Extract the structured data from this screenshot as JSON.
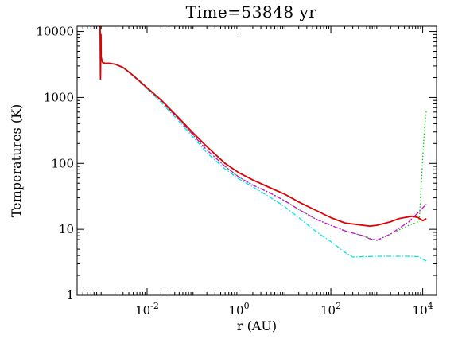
{
  "chart_data": {
    "type": "line",
    "title": "Time=53848 yr",
    "xlabel": "r (AU)",
    "ylabel": "Temperatures (K)",
    "xscale": "log",
    "yscale": "log",
    "xlim": [
      0.0003,
      20000
    ],
    "ylim": [
      1,
      12000
    ],
    "legend": "none",
    "grid": false,
    "x_major_ticks": [
      {
        "value": 0.01,
        "base": "10",
        "exp": "-2"
      },
      {
        "value": 1,
        "base": "10",
        "exp": "0"
      },
      {
        "value": 100,
        "base": "10",
        "exp": "2"
      },
      {
        "value": 10000,
        "base": "10",
        "exp": "4"
      }
    ],
    "y_major_ticks": [
      {
        "value": 1,
        "label": "1"
      },
      {
        "value": 10,
        "label": "10"
      },
      {
        "value": 100,
        "label": "100"
      },
      {
        "value": 1000,
        "label": "1000"
      },
      {
        "value": 10000,
        "label": "10000"
      }
    ],
    "series": [
      {
        "color": "#00e5e5",
        "style": "dashdot",
        "x": [
          0.00095,
          0.001,
          0.00103,
          0.00108,
          0.0012,
          0.0015,
          0.002,
          0.003,
          0.005,
          0.01,
          0.02,
          0.05,
          0.1,
          0.2,
          0.5,
          1,
          2,
          5,
          10,
          20,
          50,
          100,
          200,
          300,
          500,
          1000,
          2000,
          5000,
          8000,
          12000
        ],
        "y": [
          5000,
          4000,
          3700,
          3400,
          3300,
          3300,
          3200,
          2800,
          2100,
          1350,
          850,
          430,
          250,
          145,
          82,
          58,
          44,
          30,
          22,
          15,
          9,
          6.5,
          4.5,
          3.8,
          3.85,
          3.9,
          3.9,
          3.9,
          3.85,
          3.3
        ]
      },
      {
        "color": "#00cc00",
        "style": "dotted",
        "x": [
          0.00095,
          0.001,
          0.00103,
          0.00108,
          0.0012,
          0.0015,
          0.002,
          0.003,
          0.005,
          0.01,
          0.02,
          0.05,
          0.1,
          0.2,
          0.5,
          1,
          2,
          5,
          10,
          20,
          50,
          100,
          200,
          500,
          1000,
          2000,
          5000,
          8000,
          8500,
          9200,
          10000,
          11000,
          12000
        ],
        "y": [
          5500,
          4200,
          3700,
          3400,
          3300,
          3300,
          3200,
          2850,
          2150,
          1400,
          900,
          460,
          270,
          160,
          90,
          62,
          47,
          35,
          27,
          20,
          14,
          11.5,
          9.5,
          8,
          6.8,
          8.5,
          11.5,
          13,
          15,
          40,
          120,
          350,
          650
        ]
      },
      {
        "color": "#dd00dd",
        "style": "dashdot",
        "x": [
          0.00095,
          0.001,
          0.00103,
          0.00108,
          0.0012,
          0.0015,
          0.002,
          0.003,
          0.005,
          0.01,
          0.02,
          0.05,
          0.1,
          0.2,
          0.5,
          1,
          2,
          5,
          10,
          20,
          50,
          100,
          200,
          500,
          700,
          1000,
          2000,
          5000,
          8000,
          12000
        ],
        "y": [
          5500,
          4200,
          3700,
          3400,
          3300,
          3300,
          3200,
          2850,
          2150,
          1400,
          900,
          460,
          270,
          160,
          90,
          62,
          47,
          35,
          27,
          20,
          14,
          11.5,
          9.5,
          8,
          7.2,
          6.8,
          8.5,
          13,
          18,
          24
        ]
      },
      {
        "color": "#dd0000",
        "style": "solid",
        "x": [
          0.00095,
          0.00097,
          0.00099,
          0.001,
          0.00103,
          0.00108,
          0.0012,
          0.0015,
          0.002,
          0.003,
          0.005,
          0.01,
          0.02,
          0.05,
          0.1,
          0.2,
          0.5,
          1,
          2,
          5,
          10,
          20,
          50,
          100,
          200,
          500,
          700,
          1000,
          2000,
          3000,
          5000,
          6000,
          8000,
          10000,
          12000
        ],
        "y": [
          12000,
          1900,
          9000,
          4200,
          3700,
          3400,
          3300,
          3300,
          3200,
          2850,
          2150,
          1400,
          920,
          480,
          290,
          180,
          100,
          72,
          56,
          42,
          34,
          26,
          19,
          15,
          12.5,
          11.5,
          11.2,
          11.5,
          13,
          14.5,
          15.5,
          15.8,
          15,
          13.5,
          14.5
        ]
      }
    ]
  }
}
